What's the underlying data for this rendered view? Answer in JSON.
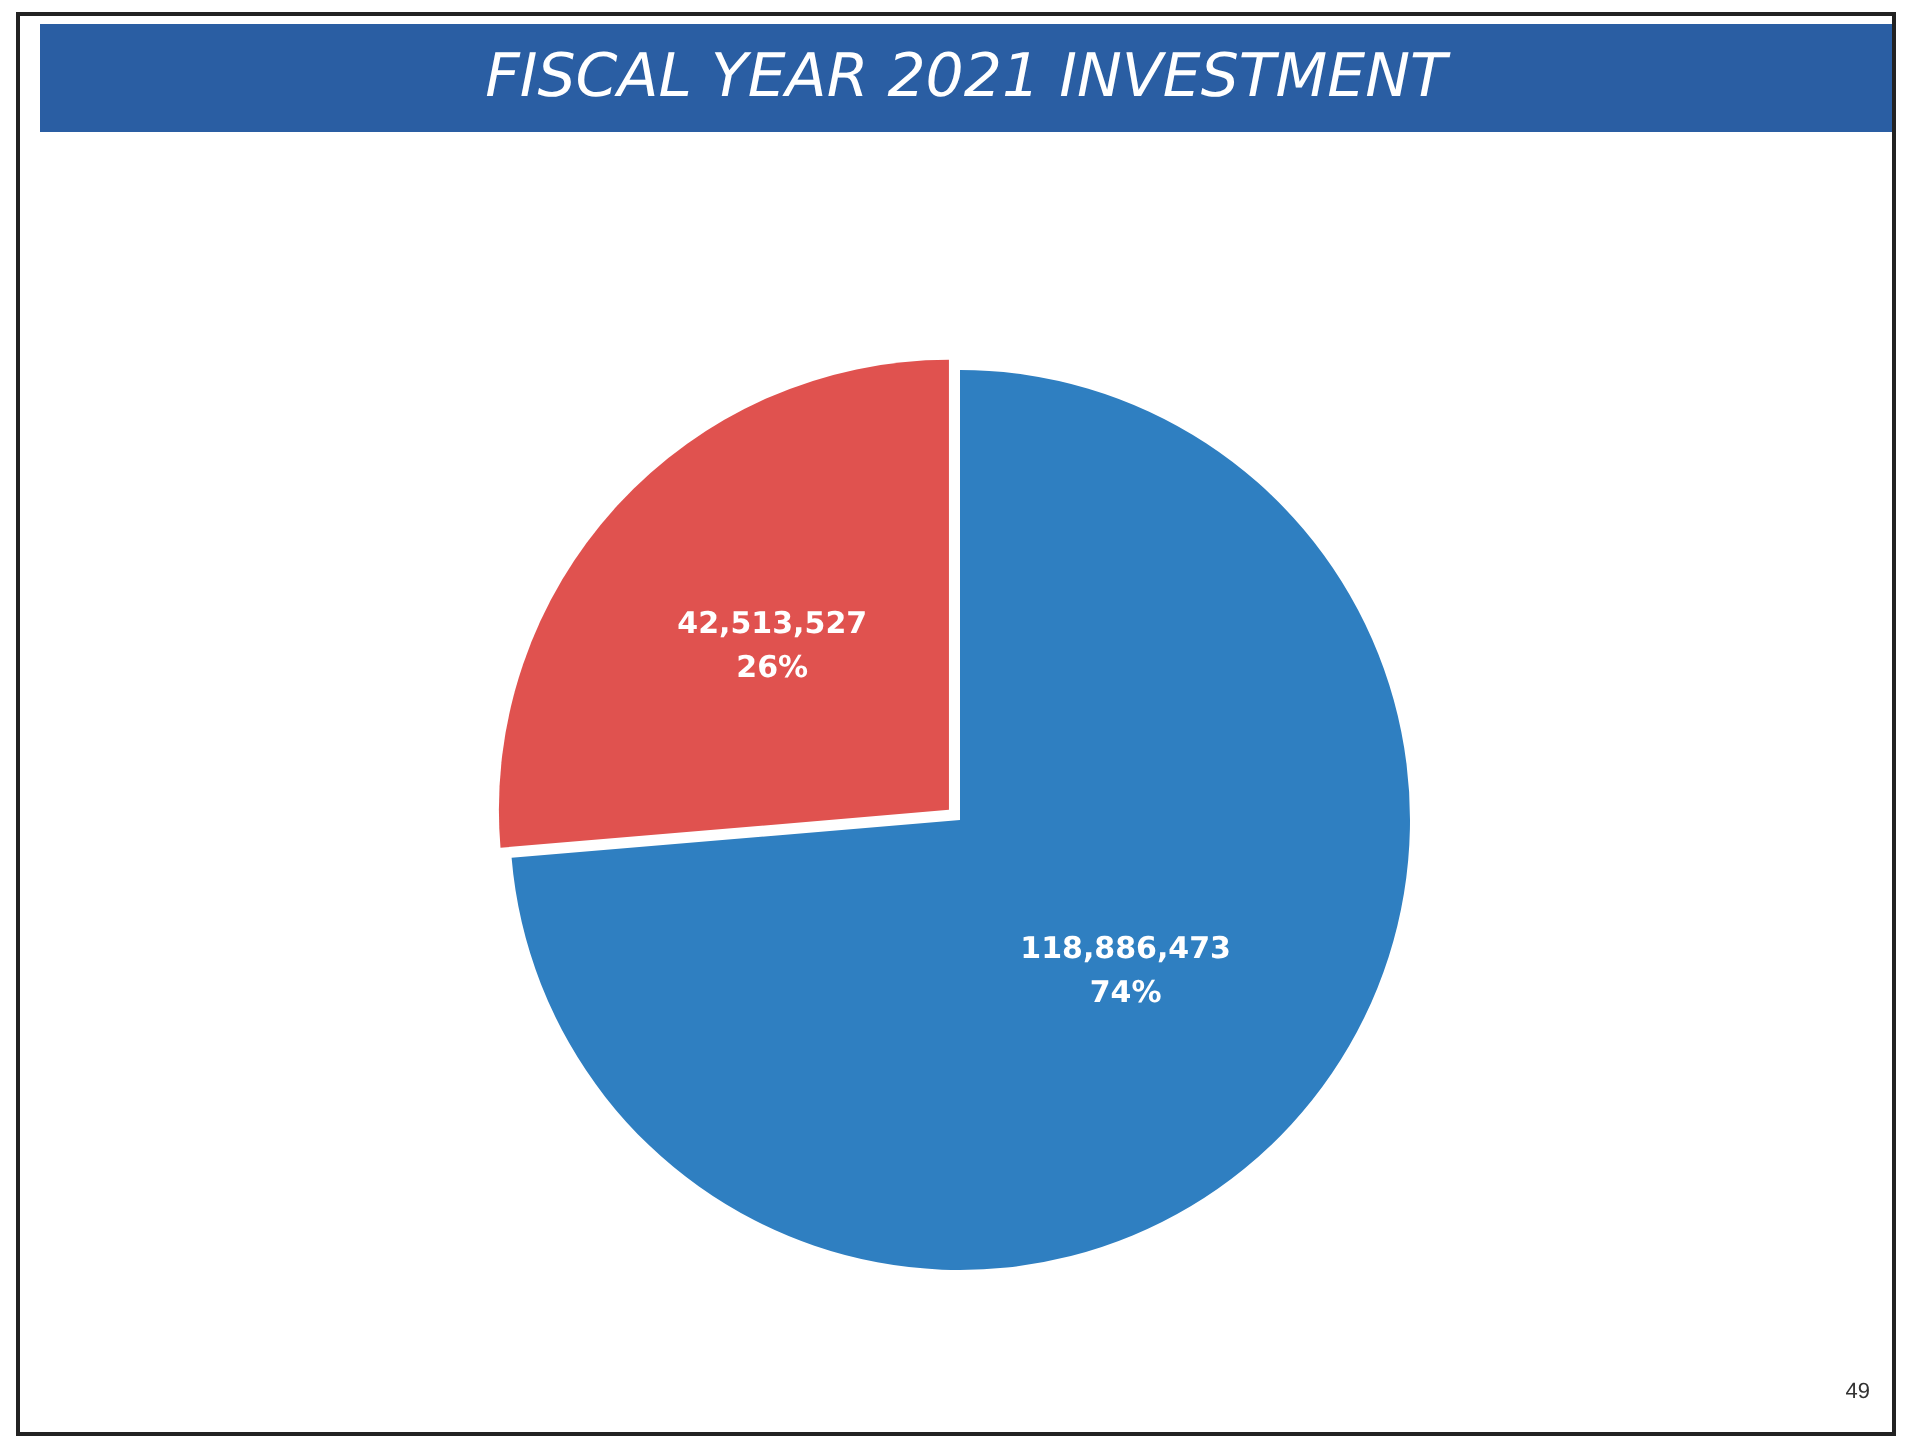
{
  "chart_data": {
    "type": "pie",
    "title": "FISCAL YEAR 2021 INVESTMENT",
    "categories": [
      null,
      null
    ],
    "values": [
      118886473,
      42513527
    ],
    "colors": [
      "#2f7fc1",
      "#e0524f"
    ],
    "value_labels": [
      "118,886,473\n74%",
      "42,513,527\n26%"
    ],
    "annotations": [
      "49"
    ],
    "legend": false
  }
}
